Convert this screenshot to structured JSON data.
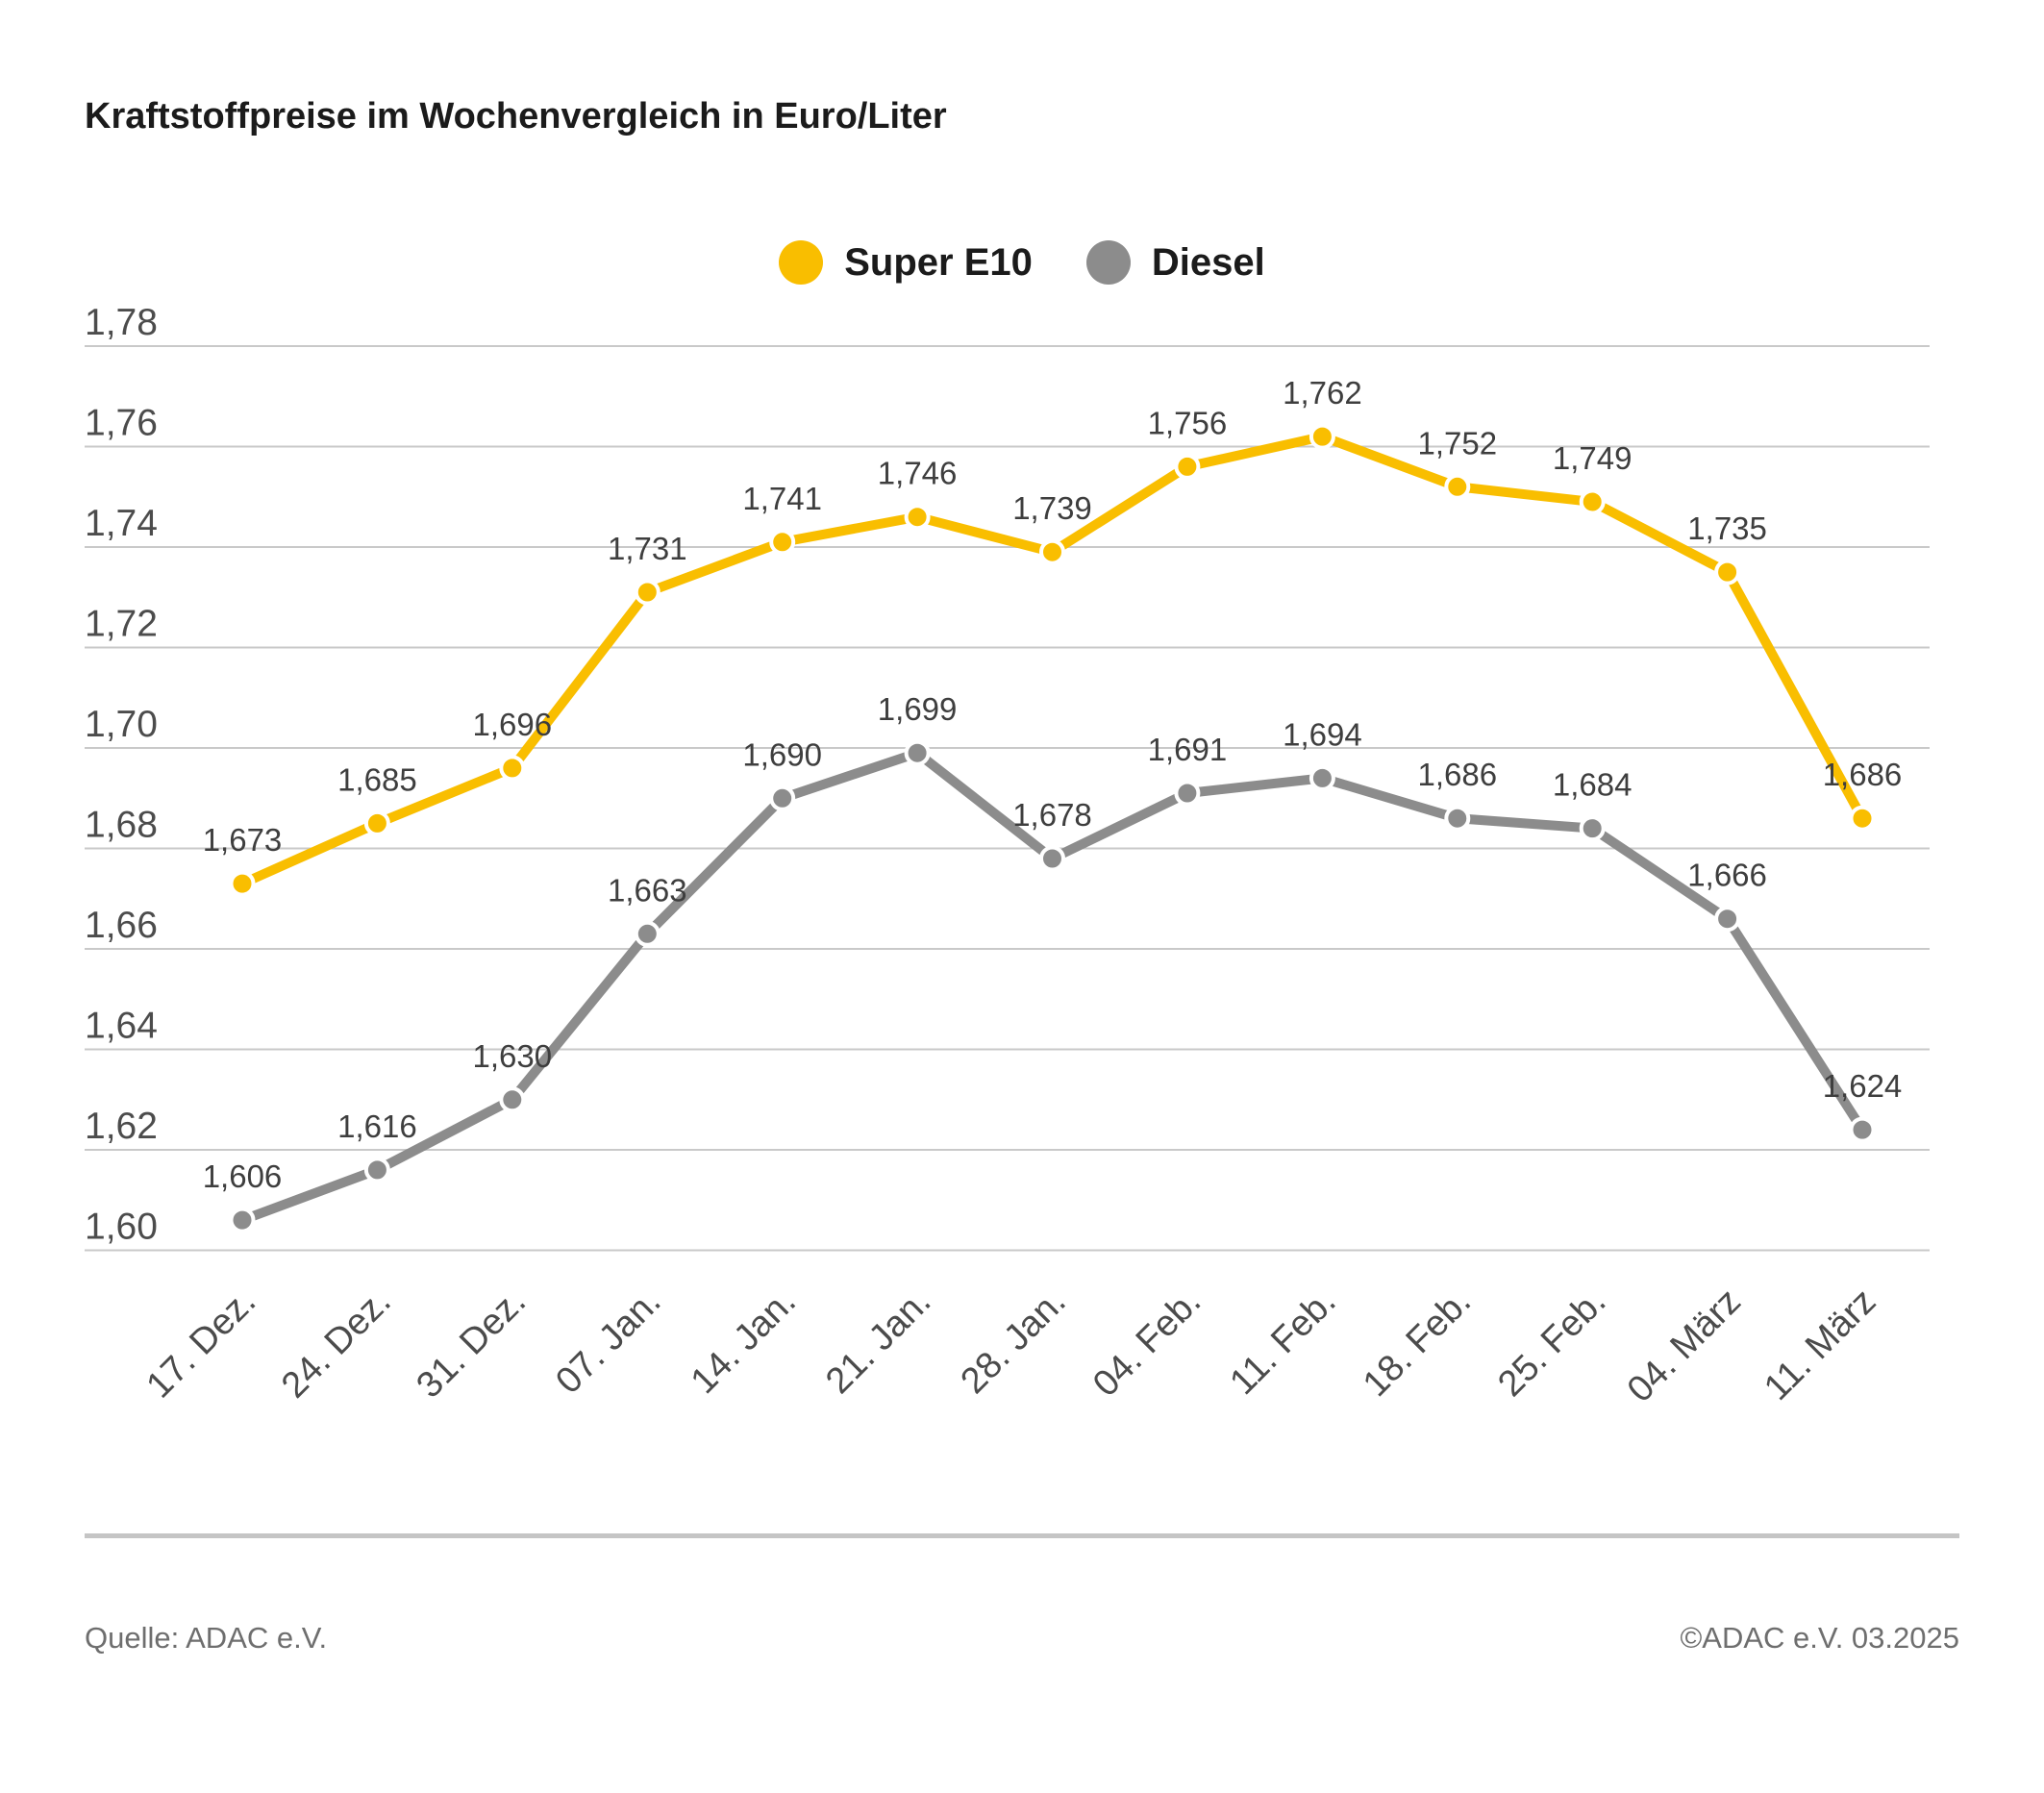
{
  "title": "Kraftstoffpreise im Wochenvergleich in Euro/Liter",
  "legend": {
    "items": [
      {
        "label": "Super E10",
        "color": "#f9be00"
      },
      {
        "label": "Diesel",
        "color": "#8c8c8c"
      }
    ]
  },
  "footer": {
    "source": "Quelle: ADAC e.V.",
    "copyright": "©ADAC e.V. 03.2025"
  },
  "chart_data": {
    "type": "line",
    "title": "Kraftstoffpreise im Wochenvergleich in Euro/Liter",
    "unit": "Euro/Liter",
    "categories": [
      "17. Dez.",
      "24. Dez.",
      "31. Dez.",
      "07. Jan.",
      "14. Jan.",
      "21. Jan.",
      "28. Jan.",
      "04. Feb.",
      "11. Feb.",
      "18. Feb.",
      "25. Feb.",
      "04. März",
      "11. März"
    ],
    "series": [
      {
        "name": "Super E10",
        "color": "#f9be00",
        "values": [
          1.673,
          1.685,
          1.696,
          1.731,
          1.741,
          1.746,
          1.739,
          1.756,
          1.762,
          1.752,
          1.749,
          1.735,
          1.686
        ],
        "labels": [
          "1,673",
          "1,685",
          "1,696",
          "1,731",
          "1,741",
          "1,746",
          "1,739",
          "1,756",
          "1,762",
          "1,752",
          "1,749",
          "1,735",
          "1,686"
        ]
      },
      {
        "name": "Diesel",
        "color": "#8c8c8c",
        "values": [
          1.606,
          1.616,
          1.63,
          1.663,
          1.69,
          1.699,
          1.678,
          1.691,
          1.694,
          1.686,
          1.684,
          1.666,
          1.624
        ],
        "labels": [
          "1,606",
          "1,616",
          "1,630",
          "1,663",
          "1,690",
          "1,699",
          "1,678",
          "1,691",
          "1,694",
          "1,686",
          "1,684",
          "1,666",
          "1,624"
        ]
      }
    ],
    "ylim": [
      1.6,
      1.78
    ],
    "y_tick_step": 0.02,
    "y_tick_labels": [
      "1,78",
      "1,76",
      "1,74",
      "1,72",
      "1,70",
      "1,68",
      "1,66",
      "1,64",
      "1,62",
      "1,60"
    ],
    "grid": "horizontal",
    "legend_position": "top-center",
    "x_tick_rotation": -45
  }
}
